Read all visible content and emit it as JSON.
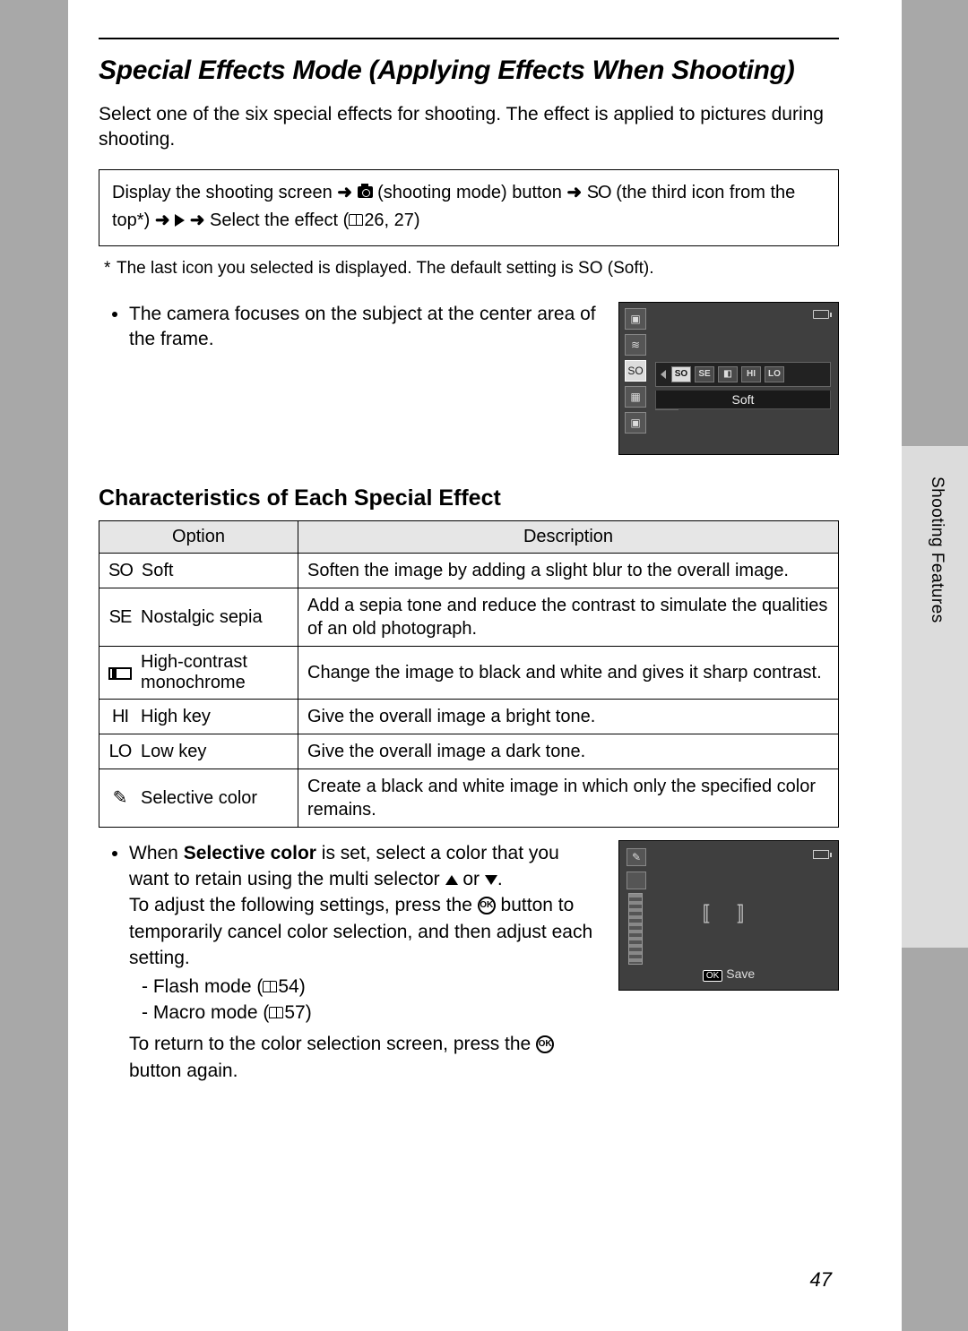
{
  "section_tab": "Shooting Features",
  "title": "Special Effects Mode (Applying Effects When Shooting)",
  "intro": "Select one of the six special effects for shooting. The effect is applied to pictures during shooting.",
  "nav": {
    "p1": "Display the shooting screen ",
    "p2": " (shooting mode) button ",
    "p3": " (the third icon from the top*) ",
    "p4": " Select the effect (",
    "p5": "26, 27)",
    "so": "SO"
  },
  "footnote": "The last icon you selected is displayed. The default setting is SO (Soft).",
  "bullet1": "The camera focuses on the subject at the center area of the frame.",
  "lcd1": {
    "opts": [
      "SO",
      "SE",
      "◧",
      "HI",
      "LO"
    ],
    "label": "Soft"
  },
  "subhead": "Characteristics of Each Special Effect",
  "table": {
    "h1": "Option",
    "h2": "Description",
    "rows": [
      {
        "sym": "SO",
        "name": "Soft",
        "desc": "Soften the image by adding a slight blur to the overall image."
      },
      {
        "sym": "SE",
        "name": "Nostalgic sepia",
        "desc": "Add a sepia tone and reduce the contrast to simulate the qualities of an old photograph."
      },
      {
        "sym": "BOX",
        "name": "High-contrast monochrome",
        "desc": "Change the image to black and white and gives it sharp contrast."
      },
      {
        "sym": "HI",
        "name": "High key",
        "desc": "Give the overall image a bright tone."
      },
      {
        "sym": "LO",
        "name": "Low key",
        "desc": "Give the overall image a dark tone."
      },
      {
        "sym": "✎",
        "name": "Selective color",
        "desc": "Create a black and white image in which only the specified color remains."
      }
    ]
  },
  "sel": {
    "l1a": "When ",
    "l1b": "Selective color",
    "l1c": " is set, select a color that you want to retain using the multi selector ",
    "l1d": " or ",
    "l1e": ".",
    "l2a": "To adjust the following settings, press the ",
    "l2b": " button to temporarily cancel color selection, and then adjust each setting.",
    "d1a": "Flash mode (",
    "d1b": "54)",
    "d2a": "Macro mode (",
    "d2b": "57)",
    "l3a": "To return to the color selection screen, press the ",
    "l3b": " button again."
  },
  "lcd2": {
    "save": "Save"
  },
  "page_num": "47"
}
